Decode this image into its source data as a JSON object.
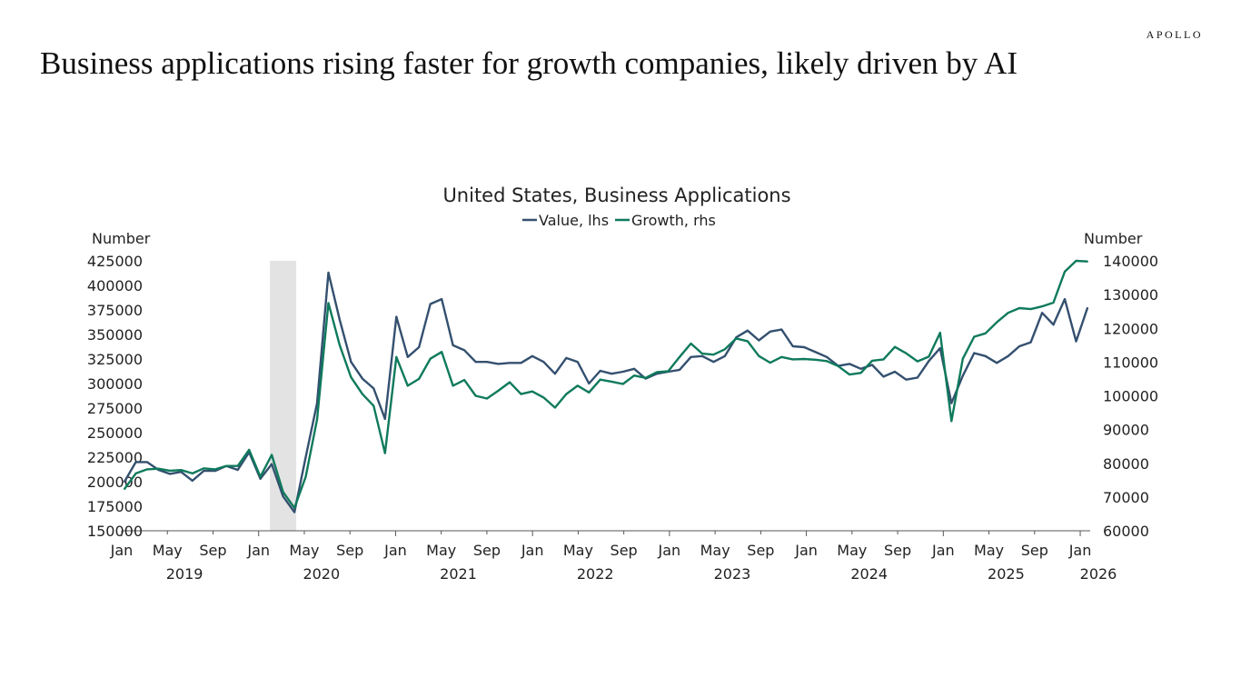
{
  "brand": "APOLLO",
  "headline": "Business applications rising faster for growth companies, likely driven by AI",
  "colors": {
    "value": "#34506f",
    "growth": "#0f7a5c",
    "recession": "#e3e3e3"
  },
  "chart_data": {
    "type": "line",
    "title": "United States, Business Applications",
    "ylabel_left": "Number",
    "ylabel_right": "Number",
    "legend_placement": "top-center",
    "grid": false,
    "ylim_left": [
      150000,
      425000
    ],
    "ylim_right": [
      60000,
      140000
    ],
    "yticks_left": [
      "150000",
      "175000",
      "200000",
      "225000",
      "250000",
      "275000",
      "300000",
      "325000",
      "350000",
      "375000",
      "400000",
      "425000"
    ],
    "yticks_right": [
      "60000",
      "70000",
      "80000",
      "90000",
      "100000",
      "110000",
      "120000",
      "130000",
      "140000"
    ],
    "xtick_months": [
      "Jan",
      "May",
      "Sep",
      "Jan",
      "May",
      "Sep",
      "Jan",
      "May",
      "Sep",
      "Jan",
      "May",
      "Sep",
      "Jan",
      "May",
      "Sep",
      "Jan",
      "May",
      "Sep",
      "Jan",
      "May",
      "Sep",
      "Jan"
    ],
    "xtick_years": [
      "2019",
      "2020",
      "2021",
      "2022",
      "2023",
      "2024",
      "2025",
      "2026"
    ],
    "recession_shading": [
      "2020-02",
      "2020-04"
    ],
    "x_start": "2019-01",
    "x_end": "2026-02",
    "series": [
      {
        "name": "Value, lhs",
        "axis": "left",
        "values": [
          200000,
          220000,
          220000,
          212000,
          208000,
          210000,
          201000,
          211000,
          211000,
          216000,
          212000,
          230000,
          203000,
          218000,
          185000,
          169000,
          225000,
          280000,
          413000,
          365000,
          322000,
          305000,
          295000,
          264000,
          368000,
          327000,
          337000,
          381000,
          386000,
          339000,
          334000,
          322000,
          322000,
          320000,
          321000,
          321000,
          328000,
          322000,
          310000,
          326000,
          322000,
          300000,
          313000,
          310000,
          312000,
          315000,
          305000,
          310000,
          312000,
          314000,
          327000,
          328000,
          322000,
          328000,
          347000,
          354000,
          344000,
          353000,
          355000,
          338000,
          337000,
          332000,
          327000,
          318000,
          320000,
          315000,
          319000,
          307000,
          312000,
          304000,
          306000,
          323000,
          336000,
          280000,
          308000,
          331000,
          328000,
          321000,
          328000,
          338000,
          342000,
          372000,
          360000,
          386000,
          343000,
          377000
        ]
      },
      {
        "name": "Growth, rhs",
        "axis": "right",
        "values": [
          72400,
          77000,
          78200,
          78400,
          77800,
          78000,
          77000,
          78500,
          78200,
          79200,
          79200,
          84000,
          76000,
          82500,
          71500,
          66800,
          76000,
          93000,
          127500,
          115000,
          105500,
          100500,
          97000,
          83000,
          111500,
          103000,
          105000,
          111000,
          113000,
          103000,
          104700,
          100000,
          99200,
          101500,
          104000,
          100500,
          101300,
          99500,
          96500,
          100500,
          103000,
          101000,
          104800,
          104200,
          103500,
          106000,
          105300,
          107000,
          107300,
          111500,
          115500,
          112500,
          112200,
          113800,
          117000,
          116200,
          111800,
          109800,
          111500,
          110800,
          110900,
          110700,
          110300,
          108800,
          106300,
          106800,
          110400,
          110800,
          114500,
          112600,
          110200,
          111600,
          118700,
          92500,
          111000,
          117500,
          118500,
          121800,
          124600,
          126000,
          125700,
          126500,
          127600,
          136800,
          140000,
          139800
        ]
      }
    ]
  }
}
